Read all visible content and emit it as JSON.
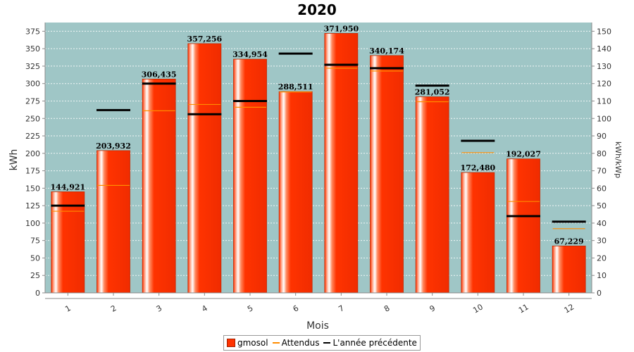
{
  "chart_data": {
    "type": "bar",
    "title": "2020",
    "xlabel": "Mois",
    "ylabel": "kWh",
    "ylabel_right": "kWh/kWp",
    "categories": [
      "1",
      "2",
      "3",
      "4",
      "5",
      "6",
      "7",
      "8",
      "9",
      "10",
      "11",
      "12"
    ],
    "ylim": [
      0,
      387.5
    ],
    "yticks": [
      0,
      25,
      50,
      75,
      100,
      125,
      150,
      175,
      200,
      225,
      250,
      275,
      300,
      325,
      350,
      375
    ],
    "ylim_right": [
      0,
      155
    ],
    "yticks_right": [
      0,
      10,
      20,
      30,
      40,
      50,
      60,
      70,
      80,
      90,
      100,
      110,
      120,
      130,
      140,
      150
    ],
    "grid": true,
    "legend_position": "bottom",
    "series": [
      {
        "name": "gmosol",
        "kind": "bar",
        "color": "#ff3300",
        "values": [
          144.921,
          203.932,
          306.435,
          357.256,
          334.954,
          288.511,
          371.95,
          340.174,
          281.052,
          172.48,
          192.027,
          67.229
        ],
        "labels": [
          "144,921",
          "203,932",
          "306,435",
          "357,256",
          "334,954",
          "288,511",
          "371,950",
          "340,174",
          "281,052",
          "172,480",
          "192,027",
          "67,229"
        ]
      },
      {
        "name": "Attendus",
        "kind": "marker",
        "color": "#ff8c00",
        "values": [
          117,
          154,
          261,
          270,
          266,
          288,
          322,
          318,
          274,
          201,
          131,
          92
        ]
      },
      {
        "name": "L'année précédente",
        "kind": "marker",
        "color": "#000000",
        "values": [
          125,
          262,
          300,
          256,
          275,
          343,
          327,
          322,
          297,
          218,
          110,
          102
        ]
      }
    ]
  },
  "colors": {
    "plot_background": "#9fc6c6",
    "bar": "#ff3300"
  }
}
